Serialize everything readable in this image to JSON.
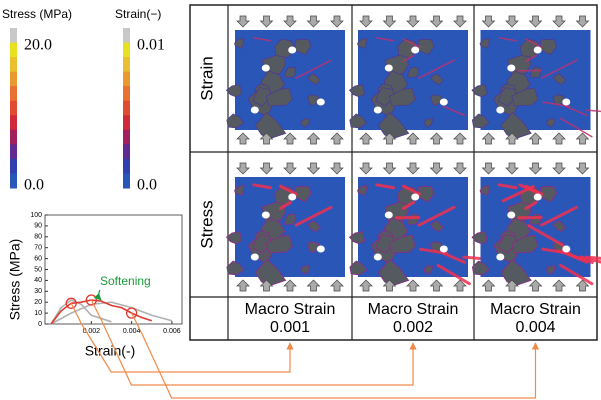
{
  "colorbars": [
    {
      "label": "Stress (MPa)",
      "max_label": "20.0",
      "min_label": "0.0"
    },
    {
      "label": "Strain(−)",
      "max_label": "0.01",
      "min_label": "0.0"
    }
  ],
  "colorbar_colors": [
    "#c8c8c8",
    "#e8e020",
    "#e8c030",
    "#e89a30",
    "#e87030",
    "#e04a30",
    "#d02a3a",
    "#a02060",
    "#602a90",
    "#3040b0",
    "#2a56b8"
  ],
  "chart_data": {
    "type": "line",
    "xlabel": "Strain(-)",
    "ylabel": "Stress (MPa)",
    "annotation": "Softening",
    "annotation_color": "#1a9a3a",
    "xlim": [
      -0.0003,
      0.0065
    ],
    "ylim": [
      0,
      100
    ],
    "xticks": [
      0.002,
      0.004,
      0.006
    ],
    "yticks": [
      0,
      10,
      20,
      30,
      40,
      50,
      60,
      70,
      80,
      90,
      100
    ],
    "series": [
      {
        "color": "#b0b0b0",
        "x": [
          0,
          0.0005,
          0.001,
          0.0015,
          0.002,
          0.003
        ],
        "values": [
          0,
          15,
          22,
          18,
          8,
          2
        ]
      },
      {
        "color": "#b0b0b0",
        "x": [
          0,
          0.001,
          0.002,
          0.003,
          0.004,
          0.005,
          0.006
        ],
        "values": [
          0,
          10,
          18,
          20,
          15,
          8,
          3
        ]
      },
      {
        "color": "#e03a30",
        "x": [
          0,
          0.0005,
          0.001,
          0.0015,
          0.002,
          0.0025,
          0.003,
          0.0035,
          0.004,
          0.0045,
          0.005
        ],
        "values": [
          0,
          12,
          19,
          20,
          22,
          21,
          17,
          15,
          10,
          6,
          3
        ]
      }
    ],
    "marked_points": {
      "color": "#e03a30",
      "x": [
        0.001,
        0.002,
        0.004
      ],
      "values": [
        19,
        22,
        10
      ]
    }
  },
  "grid": {
    "row_headers": [
      "Strain",
      "Stress"
    ],
    "columns": [
      {
        "title": "Macro Strain",
        "value": "0.001"
      },
      {
        "title": "Macro Strain",
        "value": "0.002"
      },
      {
        "title": "Macro Strain",
        "value": "0.004"
      }
    ]
  },
  "connector_color": "#f08a4a"
}
